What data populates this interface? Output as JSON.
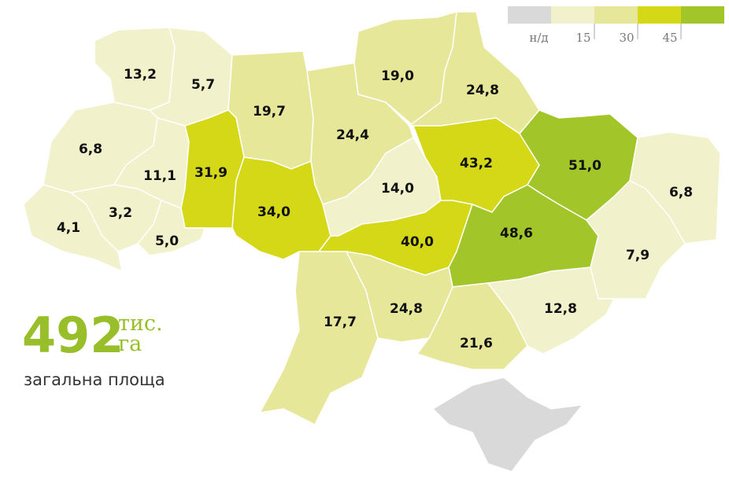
{
  "legend": {
    "nodata_label": "н/д",
    "nodata_color": "#d9d9d9",
    "thresholds": [
      15,
      30,
      45
    ],
    "colors": [
      "#f1f1cc",
      "#e6e799",
      "#d4d816",
      "#a2c52a"
    ]
  },
  "total": {
    "value": 492,
    "unit_top": "тис.",
    "unit_bottom": "га",
    "caption": "загальна площа"
  },
  "regions": [
    {
      "value": 13.2,
      "label": "13,2"
    },
    {
      "value": 5.7,
      "label": "5,7"
    },
    {
      "value": 19.7,
      "label": "19,7"
    },
    {
      "value": 24.4,
      "label": "24,4"
    },
    {
      "value": 19.0,
      "label": "19,0"
    },
    {
      "value": 24.8,
      "label": "24,8"
    },
    {
      "value": 6.8,
      "label": "6,8"
    },
    {
      "value": 11.1,
      "label": "11,1"
    },
    {
      "value": 31.9,
      "label": "31,9"
    },
    {
      "value": 34.0,
      "label": "34,0"
    },
    {
      "value": 14.0,
      "label": "14,0"
    },
    {
      "value": 43.2,
      "label": "43,2"
    },
    {
      "value": 51.0,
      "label": "51,0"
    },
    {
      "value": 6.8,
      "label": "6,8"
    },
    {
      "value": 4.1,
      "label": "4,1"
    },
    {
      "value": 3.2,
      "label": "3,2"
    },
    {
      "value": 5.0,
      "label": "5,0"
    },
    {
      "value": 40.0,
      "label": "40,0"
    },
    {
      "value": 48.6,
      "label": "48,6"
    },
    {
      "value": 7.9,
      "label": "7,9"
    },
    {
      "value": 17.7,
      "label": "17,7"
    },
    {
      "value": 24.8,
      "label": "24,8"
    },
    {
      "value": 21.6,
      "label": "21,6"
    },
    {
      "value": 12.8,
      "label": "12,8"
    }
  ]
}
